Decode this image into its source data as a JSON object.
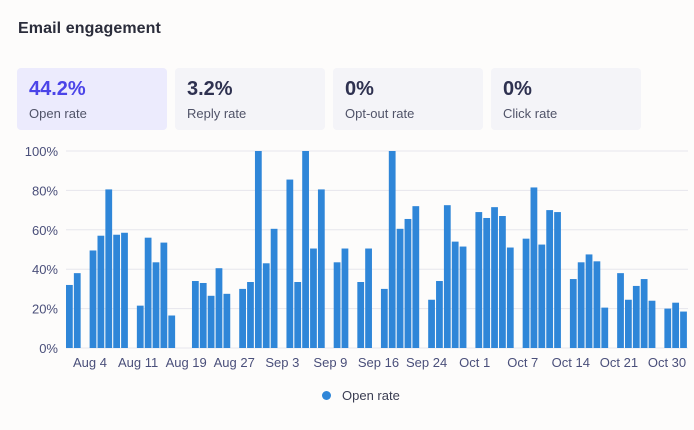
{
  "title": "Email engagement",
  "stats": [
    {
      "value": "44.2%",
      "label": "Open rate",
      "active": true
    },
    {
      "value": "3.2%",
      "label": "Reply rate",
      "active": false
    },
    {
      "value": "0%",
      "label": "Opt-out rate",
      "active": false
    },
    {
      "value": "0%",
      "label": "Click rate",
      "active": false
    }
  ],
  "colors": {
    "bar": "#2f86d8",
    "grid": "#e6e6ec",
    "axis_text": "#4a4f7a"
  },
  "chart_data": {
    "type": "bar",
    "title": "",
    "xlabel": "",
    "ylabel": "",
    "ylim": [
      0,
      100
    ],
    "yticks": [
      "0%",
      "20%",
      "40%",
      "60%",
      "80%",
      "100%"
    ],
    "x_tick_labels": [
      "Aug 4",
      "Aug 11",
      "Aug 19",
      "Aug 27",
      "Sep 3",
      "Sep 9",
      "Sep 16",
      "Sep 24",
      "Oct 1",
      "Oct 7",
      "Oct 14",
      "Oct 21",
      "Oct 30"
    ],
    "legend": [
      "Open rate"
    ],
    "legend_position": "bottom-center",
    "series": [
      {
        "name": "Open rate",
        "values": [
          32,
          38,
          null,
          49.5,
          57,
          80.5,
          57.5,
          58.5,
          null,
          21.5,
          56,
          43.5,
          53.5,
          16.5,
          null,
          null,
          34,
          33,
          26.5,
          40.5,
          27.5,
          null,
          30,
          33.5,
          100,
          43,
          60.5,
          null,
          85.5,
          33.5,
          100,
          50.5,
          80.5,
          null,
          43.5,
          50.5,
          null,
          33.5,
          50.5,
          null,
          30,
          100,
          60.5,
          65.5,
          72,
          null,
          24.5,
          34,
          72.5,
          54,
          51.5,
          null,
          69,
          66,
          71.5,
          67,
          51,
          null,
          55.5,
          81.5,
          52.5,
          70,
          69,
          null,
          35,
          43.5,
          47.5,
          44,
          20.5,
          null,
          38,
          24.5,
          31.5,
          35,
          24,
          null,
          20,
          23,
          18.5
        ]
      }
    ]
  },
  "legend_label": "Open rate"
}
